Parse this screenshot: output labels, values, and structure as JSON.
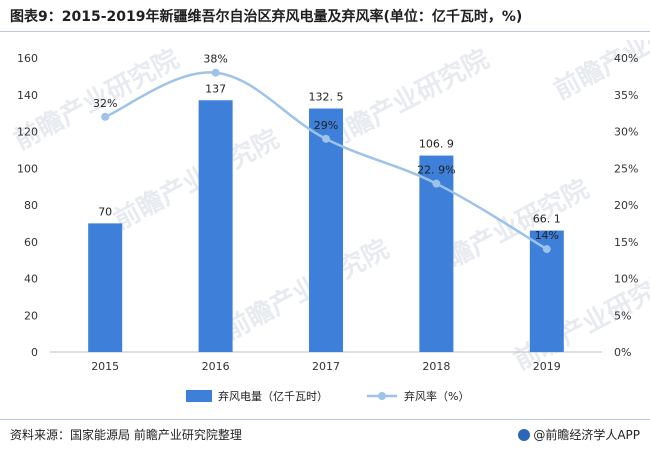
{
  "title": "图表9：2015-2019年新疆维吾尔自治区弃风电量及弃风率(单位：亿千瓦时，%)",
  "source": "资料来源：国家能源局 前瞻产业研究院整理",
  "brand": "@前瞻经济学人APP",
  "watermark": "前瞻产业研究院",
  "colors": {
    "bar": "#3d7fd9",
    "line": "#9dc3e8",
    "axis": "#bfbfbf",
    "text": "#333333"
  },
  "chart_data": {
    "type": "bar",
    "categories": [
      "2015",
      "2016",
      "2017",
      "2018",
      "2019"
    ],
    "series": [
      {
        "name": "弃风电量（亿千瓦时）",
        "type": "bar",
        "axis": "left",
        "values": [
          70,
          137,
          132.5,
          106.9,
          66.1
        ],
        "labels": [
          "70",
          "137",
          "132. 5",
          "106. 9",
          "66. 1"
        ]
      },
      {
        "name": "弃风率（%）",
        "type": "line",
        "axis": "right",
        "values": [
          32,
          38,
          29,
          22.9,
          14
        ],
        "labels": [
          "32%",
          "38%",
          "29%",
          "22. 9%",
          "14%"
        ]
      }
    ],
    "y_left": {
      "min": 0,
      "max": 160,
      "ticks": [
        "0",
        "20",
        "40",
        "60",
        "80",
        "100",
        "120",
        "140",
        "160"
      ]
    },
    "y_right": {
      "min": 0,
      "max": 40,
      "ticks": [
        "0%",
        "5%",
        "10%",
        "15%",
        "20%",
        "25%",
        "30%",
        "35%",
        "40%"
      ]
    },
    "legend_position": "bottom",
    "grid": false
  }
}
